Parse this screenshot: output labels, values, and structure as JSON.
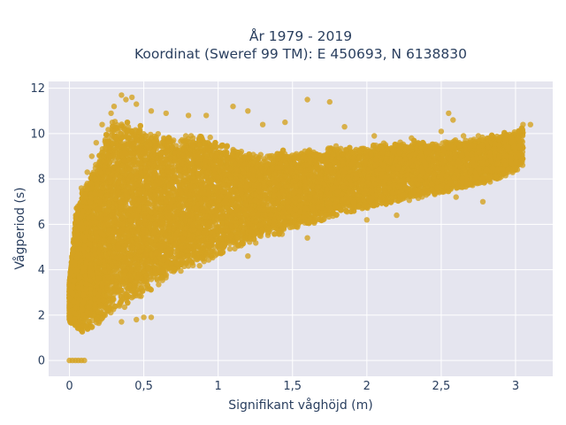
{
  "chart_data": {
    "type": "scatter",
    "title_line1": "År 1979 - 2019",
    "title_line2": "Koordinat (Sweref 99 TM): E 450693, N 6138830",
    "xlabel": "Signifikant våghöjd (m)",
    "ylabel": "Vågperiod (s)",
    "xlim": [
      -0.14,
      3.25
    ],
    "ylim": [
      -0.7,
      12.3
    ],
    "xticks": [
      0,
      0.5,
      1,
      1.5,
      2,
      2.5,
      3
    ],
    "xtick_labels": [
      "0",
      "0,5",
      "1",
      "1,5",
      "2",
      "2,5",
      "3"
    ],
    "yticks": [
      0,
      2,
      4,
      6,
      8,
      10,
      12
    ],
    "ytick_labels": [
      "0",
      "2",
      "4",
      "6",
      "8",
      "10",
      "12"
    ],
    "grid": true,
    "colors": {
      "plot_bg": "#e5e5ef",
      "marker": "#d4a321",
      "text": "#2a3f5f",
      "grid": "#ffffff"
    },
    "envelope": {
      "x": [
        0.0,
        0.05,
        0.1,
        0.15,
        0.2,
        0.25,
        0.3,
        0.4,
        0.5,
        0.6,
        0.7,
        0.8,
        0.9,
        1.0,
        1.1,
        1.2,
        1.3,
        1.4,
        1.5,
        1.6,
        1.7,
        1.8,
        1.9,
        2.0,
        2.1,
        2.2,
        2.3,
        2.4,
        2.5,
        2.6,
        2.7,
        2.8,
        2.9,
        3.0,
        3.1
      ],
      "y_low": [
        1.7,
        1.3,
        1.2,
        1.3,
        1.5,
        1.7,
        1.9,
        2.3,
        2.8,
        3.2,
        3.6,
        3.9,
        4.2,
        4.5,
        4.8,
        5.0,
        5.3,
        5.5,
        5.7,
        5.9,
        6.1,
        6.3,
        6.5,
        6.6,
        6.8,
        6.9,
        7.0,
        7.1,
        7.3,
        7.5,
        7.6,
        7.8,
        8.0,
        8.3,
        8.8
      ],
      "y_high": [
        3.5,
        7.0,
        7.8,
        8.5,
        9.2,
        10.2,
        10.7,
        10.6,
        10.4,
        10.1,
        10.1,
        10.1,
        10.0,
        9.9,
        9.5,
        9.3,
        9.2,
        9.3,
        9.3,
        9.4,
        9.4,
        9.5,
        9.5,
        9.6,
        9.6,
        9.6,
        9.7,
        9.7,
        9.7,
        9.8,
        9.8,
        9.9,
        10.0,
        10.2,
        10.4
      ]
    },
    "outliers": [
      [
        0.0,
        0.0
      ],
      [
        0.02,
        0.0
      ],
      [
        0.04,
        0.0
      ],
      [
        0.06,
        0.0
      ],
      [
        0.08,
        0.0
      ],
      [
        0.1,
        0.0
      ],
      [
        0.35,
        11.7
      ],
      [
        0.38,
        11.5
      ],
      [
        0.42,
        11.6
      ],
      [
        0.3,
        11.2
      ],
      [
        0.45,
        11.3
      ],
      [
        0.55,
        11.0
      ],
      [
        0.28,
        10.9
      ],
      [
        0.65,
        10.9
      ],
      [
        0.8,
        10.8
      ],
      [
        0.92,
        10.8
      ],
      [
        1.1,
        11.2
      ],
      [
        1.2,
        11.0
      ],
      [
        1.3,
        10.4
      ],
      [
        1.45,
        10.5
      ],
      [
        1.6,
        11.5
      ],
      [
        1.75,
        11.4
      ],
      [
        1.85,
        10.3
      ],
      [
        0.22,
        10.4
      ],
      [
        0.18,
        9.6
      ],
      [
        0.15,
        9.0
      ],
      [
        0.12,
        8.3
      ],
      [
        0.08,
        7.6
      ],
      [
        0.05,
        4.5
      ],
      [
        0.06,
        3.2
      ],
      [
        0.03,
        2.6
      ],
      [
        0.55,
        1.9
      ],
      [
        0.45,
        1.8
      ],
      [
        0.5,
        1.9
      ],
      [
        0.35,
        1.7
      ],
      [
        2.05,
        9.9
      ],
      [
        2.3,
        9.8
      ],
      [
        2.5,
        10.1
      ],
      [
        2.55,
        10.9
      ],
      [
        2.58,
        10.6
      ],
      [
        2.65,
        9.9
      ],
      [
        2.75,
        9.9
      ],
      [
        2.85,
        9.8
      ],
      [
        2.95,
        9.4
      ],
      [
        2.97,
        8.7
      ],
      [
        3.05,
        10.4
      ],
      [
        3.1,
        10.4
      ],
      [
        3.02,
        10.0
      ],
      [
        2.78,
        7.0
      ],
      [
        2.6,
        7.2
      ],
      [
        2.95,
        8.4
      ],
      [
        2.0,
        6.2
      ],
      [
        2.2,
        6.4
      ],
      [
        1.6,
        5.4
      ],
      [
        1.2,
        4.6
      ]
    ],
    "density_points": 14000
  }
}
